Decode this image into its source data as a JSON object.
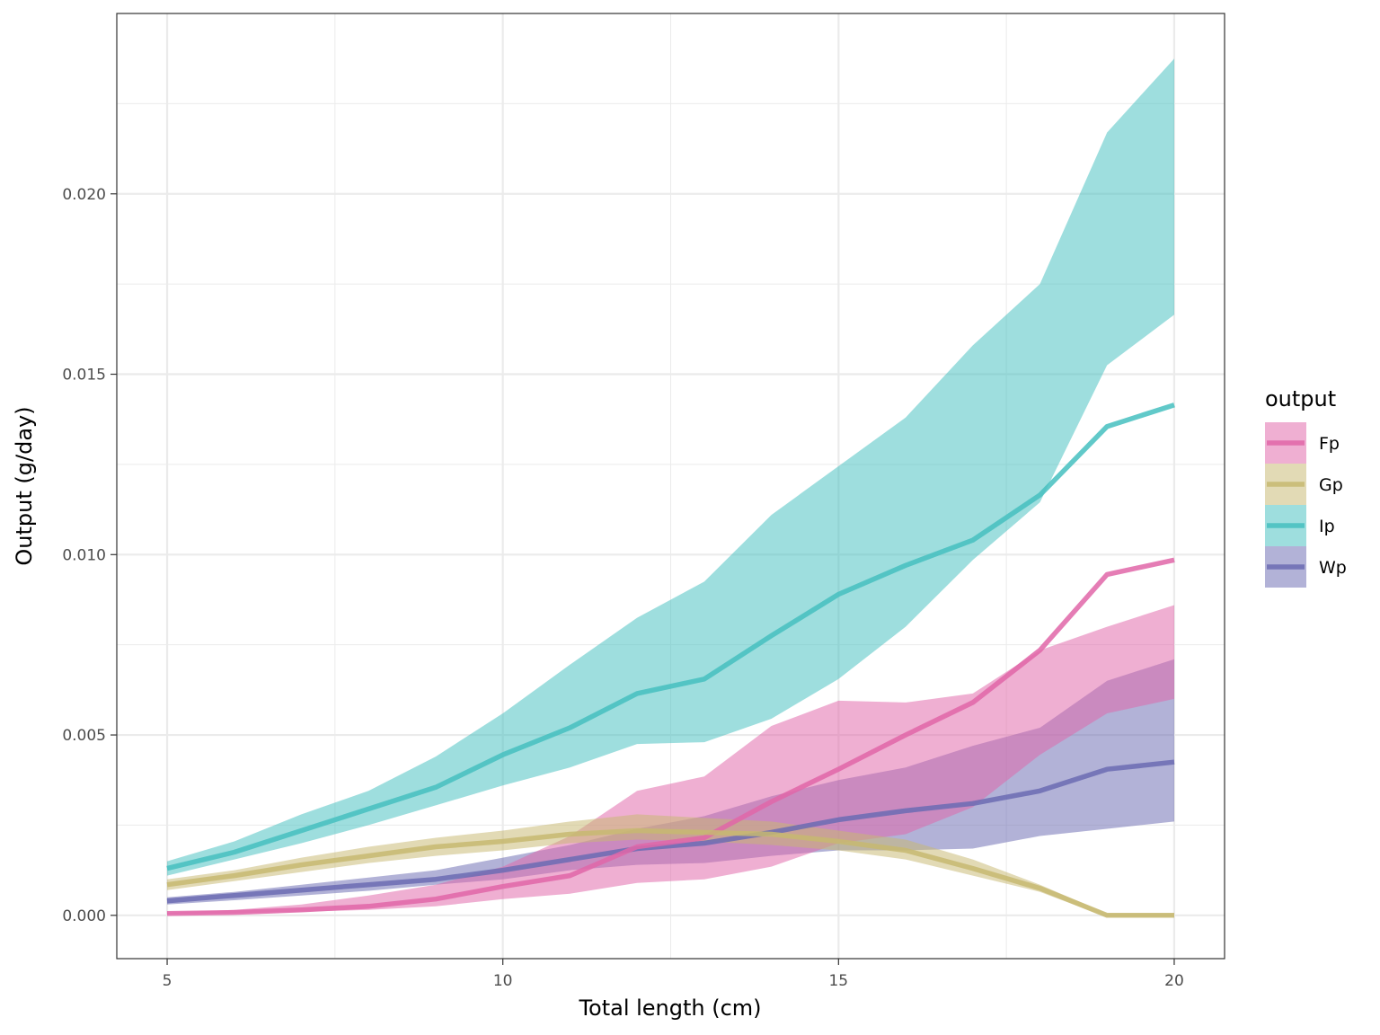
{
  "chart_data": {
    "type": "area",
    "xlabel": "Total length (cm)",
    "ylabel": "Output (g/day)",
    "xlim": [
      4.25,
      20.75
    ],
    "ylim": [
      -0.0012,
      0.025
    ],
    "x_ticks": [
      5,
      10,
      15,
      20
    ],
    "x_tick_labels": [
      "5",
      "10",
      "15",
      "20"
    ],
    "y_ticks": [
      0,
      0.005,
      0.01,
      0.015,
      0.02
    ],
    "y_tick_labels": [
      "0.000",
      "0.005",
      "0.010",
      "0.015",
      "0.020"
    ],
    "grid": true,
    "legend": {
      "title": "output",
      "position": "right"
    },
    "x": [
      5,
      6,
      7,
      8,
      9,
      10,
      11,
      12,
      13,
      14,
      15,
      16,
      17,
      18,
      19,
      20
    ],
    "series": [
      {
        "name": "Ip",
        "color": "#45BFBF",
        "values": [
          0.0013,
          0.00175,
          0.00235,
          0.00295,
          0.00355,
          0.00445,
          0.0052,
          0.00615,
          0.00655,
          0.00775,
          0.0089,
          0.0097,
          0.0104,
          0.01165,
          0.01355,
          0.01415
        ],
        "lower": [
          0.0011,
          0.00155,
          0.002,
          0.0025,
          0.00305,
          0.0036,
          0.0041,
          0.00475,
          0.0048,
          0.00545,
          0.00655,
          0.008,
          0.00985,
          0.01145,
          0.01525,
          0.01665
        ],
        "upper": [
          0.0015,
          0.00205,
          0.0028,
          0.00345,
          0.0044,
          0.0056,
          0.00695,
          0.00825,
          0.00925,
          0.0111,
          0.01245,
          0.0138,
          0.0158,
          0.0175,
          0.0217,
          0.02375
        ]
      },
      {
        "name": "Wp",
        "color": "#6B6BB3",
        "values": [
          0.0004,
          0.00055,
          0.0007,
          0.00085,
          0.001,
          0.00125,
          0.00155,
          0.00185,
          0.002,
          0.0023,
          0.00265,
          0.0029,
          0.0031,
          0.00345,
          0.00405,
          0.00425
        ],
        "lower": [
          0.0003,
          0.00042,
          0.00055,
          0.00068,
          0.00085,
          0.001,
          0.00125,
          0.0014,
          0.00145,
          0.00165,
          0.0018,
          0.0018,
          0.00185,
          0.0022,
          0.0024,
          0.0026
        ],
        "upper": [
          0.0005,
          0.00065,
          0.00085,
          0.00105,
          0.00125,
          0.0016,
          0.00195,
          0.0024,
          0.00275,
          0.0033,
          0.00375,
          0.0041,
          0.0047,
          0.0052,
          0.0065,
          0.0071
        ]
      },
      {
        "name": "Fp",
        "color": "#E066A8",
        "values": [
          5e-05,
          8e-05,
          0.00015,
          0.00025,
          0.00045,
          0.0008,
          0.0011,
          0.0019,
          0.00215,
          0.00315,
          0.00405,
          0.005,
          0.0059,
          0.00735,
          0.00945,
          0.00985
        ],
        "lower": [
          3e-05,
          5e-05,
          0.0001,
          0.00015,
          0.00025,
          0.00045,
          0.0006,
          0.0009,
          0.001,
          0.00135,
          0.002,
          0.00225,
          0.003,
          0.00445,
          0.0056,
          0.006
        ],
        "upper": [
          8e-05,
          0.00015,
          0.0003,
          0.00055,
          0.00085,
          0.00135,
          0.0022,
          0.00345,
          0.00385,
          0.00525,
          0.00595,
          0.0059,
          0.00615,
          0.00735,
          0.008,
          0.0086
        ]
      },
      {
        "name": "Gp",
        "color": "#C7B871",
        "values": [
          0.00085,
          0.0011,
          0.0014,
          0.00165,
          0.0019,
          0.00205,
          0.00225,
          0.00235,
          0.0023,
          0.00225,
          0.00205,
          0.0018,
          0.0013,
          0.00075,
          0.0,
          0.0
        ],
        "lower": [
          0.0007,
          0.00095,
          0.0012,
          0.00145,
          0.00165,
          0.0018,
          0.002,
          0.0021,
          0.00205,
          0.00195,
          0.0018,
          0.00155,
          0.0011,
          0.00065,
          -5e-05,
          -5e-05
        ],
        "upper": [
          0.001,
          0.00125,
          0.0016,
          0.0019,
          0.00215,
          0.00235,
          0.0026,
          0.0028,
          0.0027,
          0.0026,
          0.00235,
          0.0021,
          0.00155,
          0.00085,
          5e-05,
          5e-05
        ]
      }
    ],
    "legend_order": [
      "Fp",
      "Gp",
      "Ip",
      "Wp"
    ]
  }
}
